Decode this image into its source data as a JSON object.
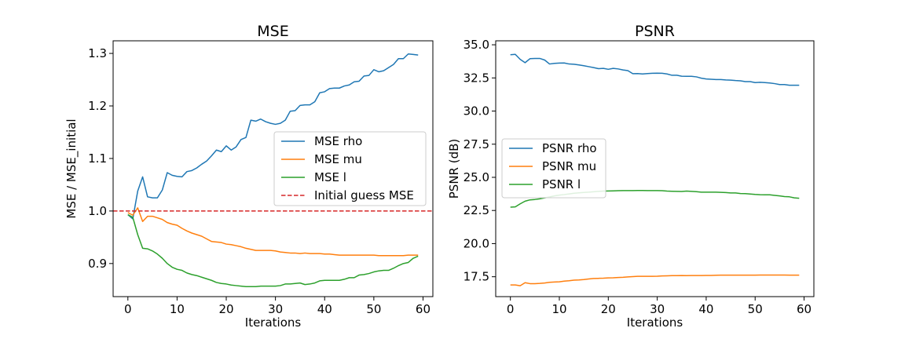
{
  "chart_data": [
    {
      "type": "line",
      "title": "MSE",
      "xlabel": "Iterations",
      "ylabel": "MSE / MSE_initial",
      "xlim": [
        -3,
        62
      ],
      "ylim": [
        0.837,
        1.324
      ],
      "xticks": [
        0,
        10,
        20,
        30,
        40,
        50,
        60
      ],
      "xtick_labels": [
        "0",
        "10",
        "20",
        "30",
        "40",
        "50",
        "60"
      ],
      "yticks": [
        0.9,
        1.0,
        1.1,
        1.2,
        1.3
      ],
      "ytick_labels": [
        "0.9",
        "1.0",
        "1.1",
        "1.2",
        "1.3"
      ],
      "grid": false,
      "legend": "center-right",
      "series": [
        {
          "name": "MSE rho",
          "color": "#1f77b4",
          "style": "solid",
          "values": [
            0.993,
            0.985,
            1.038,
            1.065,
            1.027,
            1.025,
            1.025,
            1.04,
            1.073,
            1.068,
            1.066,
            1.065,
            1.075,
            1.077,
            1.082,
            1.089,
            1.095,
            1.105,
            1.116,
            1.113,
            1.124,
            1.116,
            1.122,
            1.136,
            1.14,
            1.173,
            1.171,
            1.175,
            1.17,
            1.167,
            1.165,
            1.167,
            1.173,
            1.19,
            1.191,
            1.201,
            1.202,
            1.202,
            1.208,
            1.225,
            1.227,
            1.233,
            1.234,
            1.234,
            1.238,
            1.24,
            1.246,
            1.247,
            1.257,
            1.258,
            1.269,
            1.265,
            1.267,
            1.273,
            1.279,
            1.29,
            1.29,
            1.299,
            1.298,
            1.297
          ]
        },
        {
          "name": "MSE mu",
          "color": "#ff7f0e",
          "style": "solid",
          "values": [
            0.997,
            0.992,
            1.006,
            0.98,
            0.99,
            0.99,
            0.987,
            0.984,
            0.978,
            0.975,
            0.973,
            0.967,
            0.962,
            0.958,
            0.955,
            0.952,
            0.947,
            0.942,
            0.941,
            0.94,
            0.937,
            0.936,
            0.934,
            0.932,
            0.929,
            0.927,
            0.925,
            0.925,
            0.925,
            0.925,
            0.924,
            0.922,
            0.921,
            0.92,
            0.92,
            0.919,
            0.92,
            0.919,
            0.919,
            0.919,
            0.918,
            0.918,
            0.917,
            0.916,
            0.916,
            0.916,
            0.916,
            0.916,
            0.916,
            0.916,
            0.916,
            0.915,
            0.915,
            0.915,
            0.915,
            0.915,
            0.915,
            0.916,
            0.916,
            0.916
          ]
        },
        {
          "name": "MSE l",
          "color": "#2ca02c",
          "style": "solid",
          "values": [
            0.993,
            0.988,
            0.955,
            0.929,
            0.928,
            0.924,
            0.918,
            0.91,
            0.9,
            0.893,
            0.889,
            0.887,
            0.882,
            0.879,
            0.877,
            0.874,
            0.871,
            0.868,
            0.864,
            0.862,
            0.861,
            0.859,
            0.858,
            0.857,
            0.856,
            0.856,
            0.856,
            0.857,
            0.857,
            0.857,
            0.857,
            0.858,
            0.861,
            0.861,
            0.862,
            0.863,
            0.86,
            0.861,
            0.863,
            0.867,
            0.868,
            0.868,
            0.868,
            0.868,
            0.87,
            0.873,
            0.873,
            0.878,
            0.879,
            0.881,
            0.884,
            0.886,
            0.887,
            0.887,
            0.891,
            0.896,
            0.9,
            0.902,
            0.91,
            0.914
          ]
        },
        {
          "name": "Initial guess MSE",
          "color": "#d62728",
          "style": "dashed",
          "hline": 1.0
        }
      ]
    },
    {
      "type": "line",
      "title": "PSNR",
      "xlabel": "Iterations",
      "ylabel": "PSNR (dB)",
      "xlim": [
        -3,
        62
      ],
      "ylim": [
        16.0,
        35.3
      ],
      "xticks": [
        0,
        10,
        20,
        30,
        40,
        50,
        60
      ],
      "xtick_labels": [
        "0",
        "10",
        "20",
        "30",
        "40",
        "50",
        "60"
      ],
      "yticks": [
        17.5,
        20.0,
        22.5,
        25.0,
        27.5,
        30.0,
        32.5,
        35.0
      ],
      "ytick_labels": [
        "17.5",
        "20.0",
        "22.5",
        "25.0",
        "27.5",
        "30.0",
        "32.5",
        "35.0"
      ],
      "grid": false,
      "legend": "center-left",
      "series": [
        {
          "name": "PSNR rho",
          "color": "#1f77b4",
          "style": "solid",
          "values": [
            34.25,
            34.28,
            33.9,
            33.65,
            33.95,
            33.97,
            33.97,
            33.85,
            33.55,
            33.6,
            33.62,
            33.63,
            33.55,
            33.53,
            33.48,
            33.42,
            33.35,
            33.28,
            33.2,
            33.22,
            33.15,
            33.22,
            33.18,
            33.1,
            33.05,
            32.82,
            32.83,
            32.8,
            32.83,
            32.85,
            32.86,
            32.85,
            32.8,
            32.7,
            32.7,
            32.63,
            32.62,
            32.62,
            32.58,
            32.48,
            32.42,
            32.4,
            32.38,
            32.38,
            32.35,
            32.33,
            32.3,
            32.28,
            32.22,
            32.22,
            32.15,
            32.17,
            32.15,
            32.12,
            32.07,
            32.0,
            32.0,
            31.95,
            31.95,
            31.95
          ]
        },
        {
          "name": "PSNR mu",
          "color": "#ff7f0e",
          "style": "solid",
          "values": [
            16.88,
            16.88,
            16.82,
            17.05,
            16.98,
            16.98,
            17.0,
            17.03,
            17.08,
            17.1,
            17.12,
            17.17,
            17.2,
            17.24,
            17.26,
            17.29,
            17.33,
            17.37,
            17.38,
            17.39,
            17.41,
            17.42,
            17.44,
            17.46,
            17.49,
            17.51,
            17.53,
            17.53,
            17.53,
            17.53,
            17.54,
            17.56,
            17.57,
            17.58,
            17.58,
            17.59,
            17.58,
            17.59,
            17.59,
            17.59,
            17.6,
            17.6,
            17.61,
            17.62,
            17.62,
            17.62,
            17.62,
            17.62,
            17.62,
            17.62,
            17.62,
            17.63,
            17.63,
            17.63,
            17.63,
            17.63,
            17.63,
            17.62,
            17.62,
            17.62
          ]
        },
        {
          "name": "PSNR l",
          "color": "#2ca02c",
          "style": "solid",
          "values": [
            22.75,
            22.77,
            23.0,
            23.2,
            23.3,
            23.33,
            23.38,
            23.45,
            23.52,
            23.6,
            23.66,
            23.7,
            23.75,
            23.8,
            23.83,
            23.86,
            23.88,
            23.91,
            23.94,
            23.96,
            23.97,
            23.98,
            23.99,
            24.0,
            24.0,
            24.0,
            24.01,
            24.01,
            24.0,
            24.0,
            24.0,
            23.99,
            23.96,
            23.95,
            23.94,
            23.93,
            23.96,
            23.94,
            23.92,
            23.88,
            23.88,
            23.88,
            23.88,
            23.87,
            23.85,
            23.82,
            23.82,
            23.78,
            23.77,
            23.74,
            23.71,
            23.69,
            23.68,
            23.68,
            23.64,
            23.6,
            23.55,
            23.53,
            23.45,
            23.42
          ]
        }
      ]
    }
  ]
}
